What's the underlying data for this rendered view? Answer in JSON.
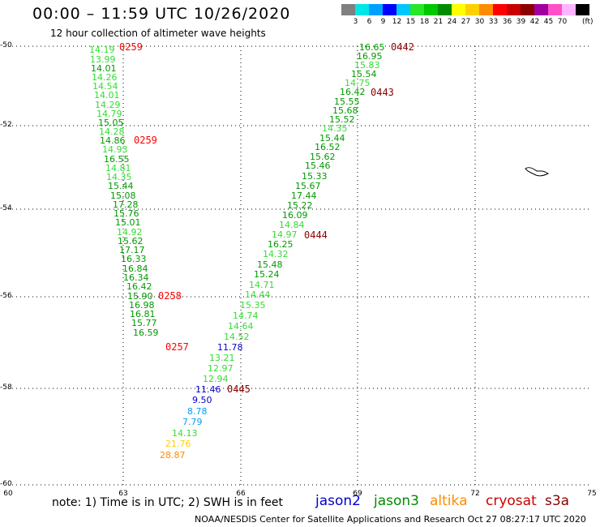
{
  "header": {
    "title": "00:00 – 11:59 UTC 10/26/2020",
    "subtitle": "12 hour collection of altimeter wave heights"
  },
  "scale": {
    "colors": [
      "#808080",
      "#00e6e6",
      "#00a0ff",
      "#0000ff",
      "#00c8ff",
      "#28e628",
      "#00c800",
      "#008c00",
      "#ffff00",
      "#ffd000",
      "#ff8c00",
      "#ff0000",
      "#c80000",
      "#8c0000",
      "#a000a0",
      "#ff50c8",
      "#ffb4ff",
      "#000000"
    ],
    "labels": [
      "3",
      "6",
      "9",
      "12",
      "15",
      "18",
      "21",
      "24",
      "27",
      "30",
      "33",
      "36",
      "39",
      "42",
      "45",
      "70"
    ],
    "unit": "(ft)"
  },
  "axes": {
    "lat_labels": [
      "-50",
      "-52",
      "-54",
      "-56",
      "-58",
      "-60"
    ],
    "lon_labels": [
      "60",
      "63",
      "66",
      "69",
      "72",
      "75"
    ]
  },
  "passes": [
    {
      "label": "0259",
      "color": "#ff0000"
    },
    {
      "label": "0259",
      "color": "#ff0000"
    },
    {
      "label": "0258",
      "color": "#ff0000"
    },
    {
      "label": "0257",
      "color": "#ff0000"
    },
    {
      "label": "0442",
      "color": "#8b0000"
    },
    {
      "label": "0443",
      "color": "#8b0000"
    },
    {
      "label": "0444",
      "color": "#8b0000"
    },
    {
      "label": "0445",
      "color": "#8b0000"
    }
  ],
  "track_west": [
    "14.19",
    "13.99",
    "14.01",
    "14.26",
    "14.54",
    "14.01",
    "14.29",
    "14.79",
    "15.05",
    "14.28",
    "14.86",
    "14.93",
    "16.55",
    "14.81",
    "14.35",
    "15.44",
    "15.08",
    "17.28",
    "15.76",
    "15.01",
    "14.92",
    "15.62",
    "17.17",
    "16.33",
    "16.84",
    "16.34",
    "16.42",
    "15.90",
    "16.98",
    "16.81",
    "15.77",
    "16.59"
  ],
  "track_east": [
    "16.65",
    "16.95",
    "15.83",
    "15.54",
    "14.75",
    "16.42",
    "15.55",
    "15.68",
    "15.52",
    "14.35",
    "15.44",
    "16.52",
    "15.62",
    "15.46",
    "15.33",
    "15.67",
    "17.44",
    "15.22",
    "16.09",
    "14.84",
    "14.97",
    "16.25",
    "14.32",
    "15.48",
    "15.24",
    "14.71",
    "14.44",
    "15.35",
    "14.74",
    "14.64",
    "14.52",
    "11.78",
    "13.21",
    "12.97",
    "12.94",
    "11.46",
    "9.50",
    "8.78",
    "7.79",
    "14.13",
    "21.76",
    "28.87"
  ],
  "footer": {
    "note": "note: 1) Time is in UTC; 2) SWH is in feet",
    "satellites": [
      {
        "name": "jason2",
        "color": "#0000cc"
      },
      {
        "name": "jason3",
        "color": "#008c00"
      },
      {
        "name": "altika",
        "color": "#ff8c00"
      },
      {
        "name": "cryosat",
        "color": "#cc0000"
      },
      {
        "name": "s3a",
        "color": "#8b0000"
      }
    ],
    "credit": "NOAA/NESDIS Center for Satellite Applications and Research    Oct 27 08:27:17 UTC 2020"
  }
}
